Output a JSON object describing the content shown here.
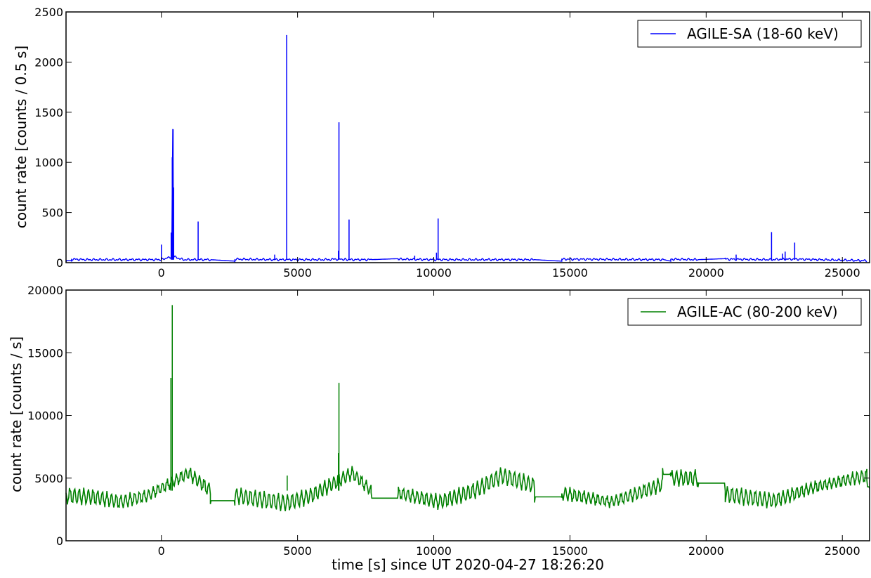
{
  "chart_data": [
    {
      "type": "line",
      "ylabel": "count rate [counts / 0.5 s]",
      "xlim": [
        -3500,
        26000
      ],
      "ylim": [
        0,
        2500
      ],
      "xticks": [
        0,
        5000,
        10000,
        15000,
        20000,
        25000
      ],
      "yticks": [
        0,
        500,
        1000,
        1500,
        2000,
        2500
      ],
      "legend_position": "top-right",
      "color": "#0000ff",
      "series": [
        {
          "name": "AGILE-SA (18-60 keV)",
          "x": [
            -3500,
            -3300,
            -3300,
            -2800,
            -1500,
            0,
            380,
            420,
            450,
            800,
            1350,
            1800,
            2700,
            2700,
            4100,
            4650,
            6000,
            6520,
            6850,
            7700,
            8700,
            8700,
            10100,
            10150,
            13700,
            14700,
            14700,
            18450,
            18700,
            18700,
            19700,
            20700,
            20700,
            22400,
            22750,
            23300,
            25900
          ],
          "y": [
            20,
            20,
            35,
            30,
            30,
            30,
            60,
            1330,
            60,
            30,
            30,
            30,
            15,
            35,
            30,
            30,
            30,
            35,
            30,
            30,
            40,
            35,
            30,
            30,
            30,
            15,
            35,
            30,
            15,
            35,
            30,
            40,
            35,
            30,
            35,
            35,
            20
          ]
        }
      ],
      "spikes": [
        {
          "x": 0,
          "y": 180
        },
        {
          "x": 360,
          "y": 300
        },
        {
          "x": 400,
          "y": 1050
        },
        {
          "x": 430,
          "y": 1330
        },
        {
          "x": 450,
          "y": 750
        },
        {
          "x": 1350,
          "y": 410
        },
        {
          "x": 4160,
          "y": 80
        },
        {
          "x": 4600,
          "y": 2270
        },
        {
          "x": 6500,
          "y": 120
        },
        {
          "x": 6520,
          "y": 1400
        },
        {
          "x": 6890,
          "y": 430
        },
        {
          "x": 9300,
          "y": 70
        },
        {
          "x": 10100,
          "y": 100
        },
        {
          "x": 10160,
          "y": 440
        },
        {
          "x": 21100,
          "y": 80
        },
        {
          "x": 22400,
          "y": 305
        },
        {
          "x": 22800,
          "y": 90
        },
        {
          "x": 22900,
          "y": 110
        },
        {
          "x": 23250,
          "y": 200
        }
      ]
    },
    {
      "type": "line",
      "xlabel": "time [s] since UT 2020-04-27 18:26:20",
      "ylabel": "count rate [counts / s]",
      "xlim": [
        -3500,
        26000
      ],
      "ylim": [
        0,
        20000
      ],
      "xticks": [
        0,
        5000,
        10000,
        15000,
        20000,
        25000
      ],
      "yticks": [
        0,
        5000,
        10000,
        15000,
        20000
      ],
      "legend_position": "top-right",
      "color": "#008000",
      "series": [
        {
          "name": "AGILE-AC (80-200 keV)",
          "x": [
            -3500,
            -2500,
            -1500,
            -500,
            500,
            1000,
            1800,
            1800,
            2700,
            2700,
            4600,
            5500,
            6500,
            7000,
            7700,
            7700,
            8700,
            8700,
            10200,
            11500,
            12500,
            13700,
            13700,
            14700,
            14700,
            16500,
            17500,
            18400,
            18400,
            18700,
            18700,
            19700,
            19700,
            20700,
            20700,
            22500,
            24000,
            25900,
            25900,
            26000
          ],
          "y": [
            3600,
            3500,
            3100,
            3600,
            4800,
            5400,
            4000,
            3200,
            3200,
            3600,
            3000,
            3600,
            4800,
            5400,
            4000,
            3400,
            3400,
            3800,
            3100,
            4000,
            5200,
            4400,
            3500,
            3500,
            3800,
            3100,
            3800,
            4500,
            5300,
            5300,
            5000,
            5000,
            4600,
            4600,
            3700,
            3200,
            4300,
            5200,
            4300,
            4300
          ]
        }
      ],
      "oscillation_amplitude": 600,
      "oscillation_period_s": 170,
      "spikes": [
        {
          "x": 350,
          "y": 13000
        },
        {
          "x": 400,
          "y": 18800
        },
        {
          "x": 4620,
          "y": 5200
        },
        {
          "x": 6500,
          "y": 7000
        },
        {
          "x": 6520,
          "y": 12600
        }
      ]
    }
  ]
}
